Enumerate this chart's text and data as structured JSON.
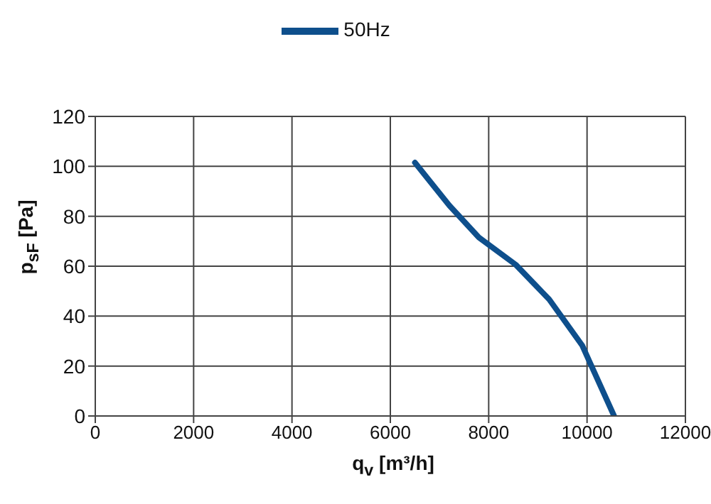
{
  "chart_data": {
    "type": "line",
    "xlabel": "q$_{v}$ [m³/h]",
    "ylabel": "p$_{sF}$ [Pa]",
    "x": [
      6500,
      7200,
      7800,
      8550,
      9230,
      9900,
      10550
    ],
    "series": [
      {
        "name": "50Hz",
        "color": "#0e4f8c",
        "values": [
          101.5,
          84.3,
          71.5,
          60.6,
          46.7,
          28.3,
          0
        ]
      }
    ],
    "xlim": [
      0,
      12000
    ],
    "xticks": [
      0,
      2000,
      4000,
      6000,
      8000,
      10000,
      12000
    ],
    "ylim": [
      0,
      120
    ],
    "yticks": [
      0,
      20,
      40,
      60,
      80,
      100,
      120
    ],
    "grid": true,
    "legend": "top",
    "marker": "none",
    "line_style": "solid"
  }
}
